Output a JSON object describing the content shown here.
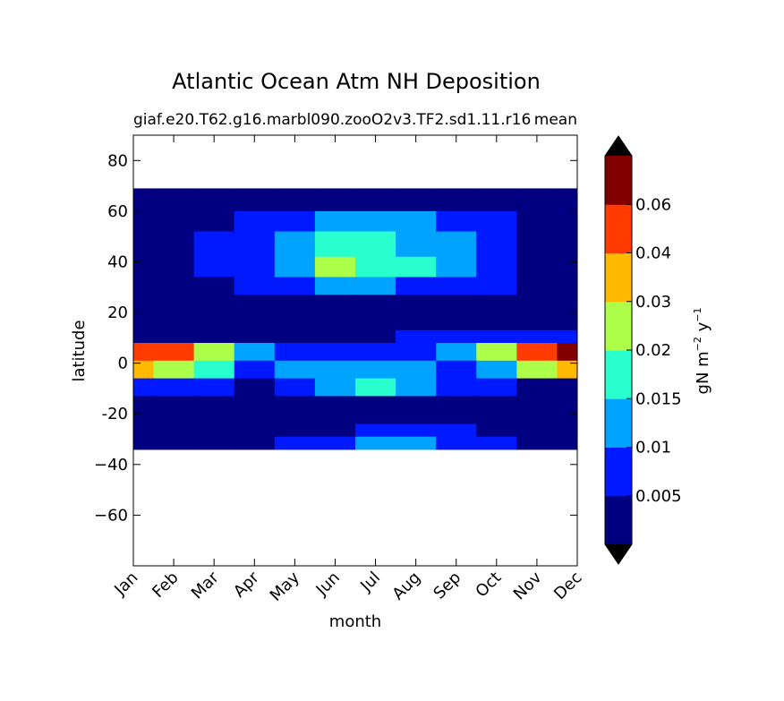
{
  "chart_data": {
    "type": "heatmap",
    "title": "Atlantic Ocean Atm NH Deposition",
    "subtitle_left": "giaf.e20.T62.g16.marbl090.zooO2v3.TF2.sd1.11.r16",
    "subtitle_right": "mean",
    "xlabel": "month",
    "ylabel": "latitude",
    "x_categories": [
      "Jan",
      "Feb",
      "Mar",
      "Apr",
      "May",
      "Jun",
      "Jul",
      "Aug",
      "Sep",
      "Oct",
      "Nov",
      "Dec"
    ],
    "y_ticks": [
      {
        "value": 80,
        "label": "80"
      },
      {
        "value": 60,
        "label": "60"
      },
      {
        "value": 40,
        "label": "40"
      },
      {
        "value": 20,
        "label": "20"
      },
      {
        "value": 0,
        "label": "0"
      },
      {
        "value": -20,
        "label": "-20"
      },
      {
        "value": -40,
        "label": "−40"
      },
      {
        "value": -60,
        "label": "−60"
      }
    ],
    "ylim": [
      -80,
      90
    ],
    "data_lat_range": [
      -34,
      69
    ],
    "colorbar": {
      "label_main": "gN m",
      "label_exp1": "−2",
      "label_mid": " y",
      "label_exp2": "−1",
      "levels": [
        0.0,
        0.005,
        0.01,
        0.015,
        0.02,
        0.03,
        0.04,
        0.06,
        0.07
      ],
      "tick_labels": [
        "0.005",
        "0.01",
        "0.015",
        "0.02",
        "0.03",
        "0.04",
        "0.06"
      ],
      "colors": [
        "#000080",
        "#0019ff",
        "#00a4ff",
        "#29ffce",
        "#adff4a",
        "#ffb900",
        "#ff3b00",
        "#800000"
      ],
      "under_color": "#000000",
      "over_color": "#000000",
      "extend": "both"
    },
    "band_levels": [
      [
        0.004,
        0.003,
        0.003,
        0.003,
        0.002,
        0.002,
        0.003,
        0.003,
        0.002,
        0.001,
        0.002,
        0.003
      ],
      [
        0.003,
        0.003,
        0.004,
        0.006,
        0.009,
        0.012,
        0.012,
        0.01,
        0.007,
        0.005,
        0.003,
        0.003
      ],
      [
        0.003,
        0.003,
        0.005,
        0.008,
        0.013,
        0.018,
        0.018,
        0.014,
        0.01,
        0.006,
        0.004,
        0.003
      ],
      [
        0.003,
        0.003,
        0.005,
        0.009,
        0.014,
        0.02,
        0.019,
        0.015,
        0.01,
        0.006,
        0.004,
        0.003
      ],
      [
        0.003,
        0.003,
        0.004,
        0.007,
        0.009,
        0.011,
        0.011,
        0.009,
        0.007,
        0.005,
        0.003,
        0.003
      ],
      [
        0.001,
        0.001,
        0.001,
        0.001,
        0.001,
        0.001,
        0.001,
        0.001,
        0.001,
        0.001,
        0.001,
        0.001
      ],
      [
        0.001,
        0.001,
        0.001,
        0.001,
        0.001,
        0.001,
        0.001,
        0.001,
        0.001,
        0.001,
        0.001,
        0.001
      ],
      [
        0.004,
        0.003,
        0.003,
        0.002,
        0.002,
        0.003,
        0.004,
        0.005,
        0.006,
        0.007,
        0.008,
        0.007
      ],
      [
        0.05,
        0.04,
        0.02,
        0.01,
        0.006,
        0.008,
        0.009,
        0.008,
        0.012,
        0.02,
        0.04,
        0.065
      ],
      [
        0.035,
        0.025,
        0.015,
        0.008,
        0.01,
        0.012,
        0.013,
        0.011,
        0.009,
        0.012,
        0.02,
        0.03
      ],
      [
        0.006,
        0.005,
        0.005,
        0.004,
        0.008,
        0.014,
        0.016,
        0.012,
        0.007,
        0.005,
        0.004,
        0.004
      ],
      [
        0.001,
        0.001,
        0.001,
        0.001,
        0.001,
        0.001,
        0.001,
        0.001,
        0.001,
        0.001,
        0.001,
        0.001
      ],
      [
        0.001,
        0.001,
        0.001,
        0.001,
        0.001,
        0.001,
        0.001,
        0.001,
        0.001,
        0.001,
        0.001,
        0.001
      ],
      [
        0.001,
        0.001,
        0.001,
        0.001,
        0.002,
        0.004,
        0.006,
        0.006,
        0.005,
        0.004,
        0.002,
        0.001
      ],
      [
        0.001,
        0.001,
        0.002,
        0.003,
        0.005,
        0.008,
        0.011,
        0.011,
        0.008,
        0.005,
        0.003,
        0.002
      ]
    ],
    "band_edges": [
      69,
      60,
      52,
      42,
      34,
      27,
      20,
      13,
      8,
      1,
      -6,
      -13,
      -20,
      -24,
      -29,
      -34
    ]
  }
}
